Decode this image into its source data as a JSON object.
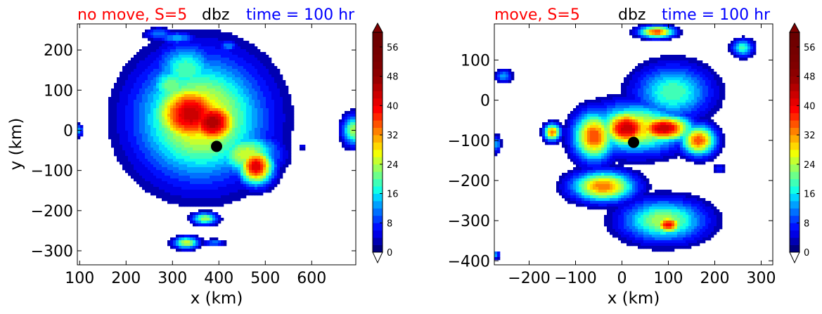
{
  "chart_data": [
    {
      "type": "heatmap",
      "field": "dbz",
      "title_left": "no move, S=5",
      "title_center": "dbz",
      "title_right": "time = 100 hr",
      "title_colors": {
        "left": "#ff0000",
        "center": "#000000",
        "right": "#0000ff"
      },
      "xlabel": "x (km)",
      "ylabel": "y (km)",
      "xlim": [
        95,
        695
      ],
      "ylim": [
        -335,
        265
      ],
      "xticks": [
        100,
        200,
        300,
        400,
        500,
        600
      ],
      "yticks": [
        -300,
        -200,
        -100,
        0,
        100,
        200
      ],
      "xtick_labels": [
        "100",
        "200",
        "300",
        "400",
        "500",
        "600"
      ],
      "ytick_labels": [
        "−300",
        "−200",
        "−100",
        "0",
        "100",
        "200"
      ],
      "center_marker": {
        "x": 395,
        "y": -40
      },
      "blobs": [
        {
          "x": 360,
          "y": 30,
          "sx": 90,
          "sy": 100,
          "peak": 30
        },
        {
          "x": 340,
          "y": 40,
          "sx": 55,
          "sy": 55,
          "peak": 44
        },
        {
          "x": 385,
          "y": 20,
          "sx": 40,
          "sy": 40,
          "peak": 46
        },
        {
          "x": 330,
          "y": 150,
          "sx": 45,
          "sy": 45,
          "peak": 20
        },
        {
          "x": 300,
          "y": 110,
          "sx": 35,
          "sy": 35,
          "peak": 22
        },
        {
          "x": 460,
          "y": -60,
          "sx": 45,
          "sy": 35,
          "peak": 26
        },
        {
          "x": 480,
          "y": -90,
          "sx": 25,
          "sy": 30,
          "peak": 42
        },
        {
          "x": 270,
          "y": 240,
          "sx": 20,
          "sy": 10,
          "peak": 12
        },
        {
          "x": 310,
          "y": 230,
          "sx": 25,
          "sy": 10,
          "peak": 14
        },
        {
          "x": 370,
          "y": -220,
          "sx": 18,
          "sy": 10,
          "peak": 24
        },
        {
          "x": 330,
          "y": -280,
          "sx": 18,
          "sy": 10,
          "peak": 26
        },
        {
          "x": 390,
          "y": -280,
          "sx": 15,
          "sy": 6,
          "peak": 12
        },
        {
          "x": 690,
          "y": 0,
          "sx": 16,
          "sy": 25,
          "peak": 24
        },
        {
          "x": 98,
          "y": 0,
          "sx": 6,
          "sy": 10,
          "peak": 14
        },
        {
          "x": 580,
          "y": -40,
          "sx": 6,
          "sy": 6,
          "peak": 6
        },
        {
          "x": 420,
          "y": 210,
          "sx": 14,
          "sy": 10,
          "peak": 12
        }
      ]
    },
    {
      "type": "heatmap",
      "field": "dbz",
      "title_left": "move, S=5",
      "title_center": "dbz",
      "title_right": "time = 100 hr",
      "title_colors": {
        "left": "#ff0000",
        "center": "#000000",
        "right": "#0000ff"
      },
      "xlabel": "x (km)",
      "ylabel": "",
      "xlim": [
        -275,
        325
      ],
      "ylim": [
        -410,
        190
      ],
      "xticks": [
        -200,
        -100,
        0,
        100,
        200,
        300
      ],
      "yticks": [
        -400,
        -300,
        -200,
        -100,
        0,
        100
      ],
      "xtick_labels": [
        "−200",
        "−100",
        "0",
        "100",
        "200",
        "300"
      ],
      "ytick_labels": [
        "−400",
        "−300",
        "−200",
        "−100",
        "0",
        "100"
      ],
      "center_marker": {
        "x": 25,
        "y": -105
      },
      "blobs": [
        {
          "x": 30,
          "y": -70,
          "sx": 70,
          "sy": 40,
          "peak": 30
        },
        {
          "x": 10,
          "y": -70,
          "sx": 35,
          "sy": 30,
          "peak": 44
        },
        {
          "x": 90,
          "y": -70,
          "sx": 40,
          "sy": 22,
          "peak": 44
        },
        {
          "x": 110,
          "y": 20,
          "sx": 55,
          "sy": 45,
          "peak": 20
        },
        {
          "x": -60,
          "y": -90,
          "sx": 30,
          "sy": 40,
          "peak": 36
        },
        {
          "x": -150,
          "y": -80,
          "sx": 12,
          "sy": 14,
          "peak": 34
        },
        {
          "x": 165,
          "y": -100,
          "sx": 25,
          "sy": 25,
          "peak": 36
        },
        {
          "x": 260,
          "y": 130,
          "sx": 15,
          "sy": 14,
          "peak": 20
        },
        {
          "x": 75,
          "y": 170,
          "sx": 25,
          "sy": 10,
          "peak": 36
        },
        {
          "x": -255,
          "y": 60,
          "sx": 12,
          "sy": 10,
          "peak": 14
        },
        {
          "x": -40,
          "y": -215,
          "sx": 45,
          "sy": 25,
          "peak": 34
        },
        {
          "x": 90,
          "y": -300,
          "sx": 60,
          "sy": 35,
          "peak": 24
        },
        {
          "x": 100,
          "y": -310,
          "sx": 20,
          "sy": 15,
          "peak": 40
        },
        {
          "x": -270,
          "y": -110,
          "sx": 6,
          "sy": 14,
          "peak": 14
        },
        {
          "x": -272,
          "y": -385,
          "sx": 6,
          "sy": 6,
          "peak": 14
        },
        {
          "x": 210,
          "y": -170,
          "sx": 8,
          "sy": 8,
          "peak": 8
        }
      ]
    }
  ],
  "colorbar": {
    "ticks": [
      0,
      8,
      16,
      24,
      32,
      40,
      48,
      56
    ],
    "vmin": 0,
    "vmax": 60,
    "step": 2,
    "extend": "both",
    "colors": [
      "#00007f",
      "#0000b2",
      "#0000e5",
      "#0010ff",
      "#0040ff",
      "#0070ff",
      "#00a0ff",
      "#00d4ff",
      "#12ffe5",
      "#3fffb7",
      "#6cff8a",
      "#99ff5c",
      "#c6ff2f",
      "#f2ff04",
      "#ffd800",
      "#ffac00",
      "#ff8000",
      "#ff5300",
      "#ff2600",
      "#ff0000",
      "#e50000",
      "#cc0000",
      "#b20000",
      "#990000",
      "#8c0000",
      "#800000",
      "#7a0000",
      "#750000",
      "#700000",
      "#6a0000"
    ],
    "under_color": "#ffffff",
    "over_color": "#7f0000"
  }
}
